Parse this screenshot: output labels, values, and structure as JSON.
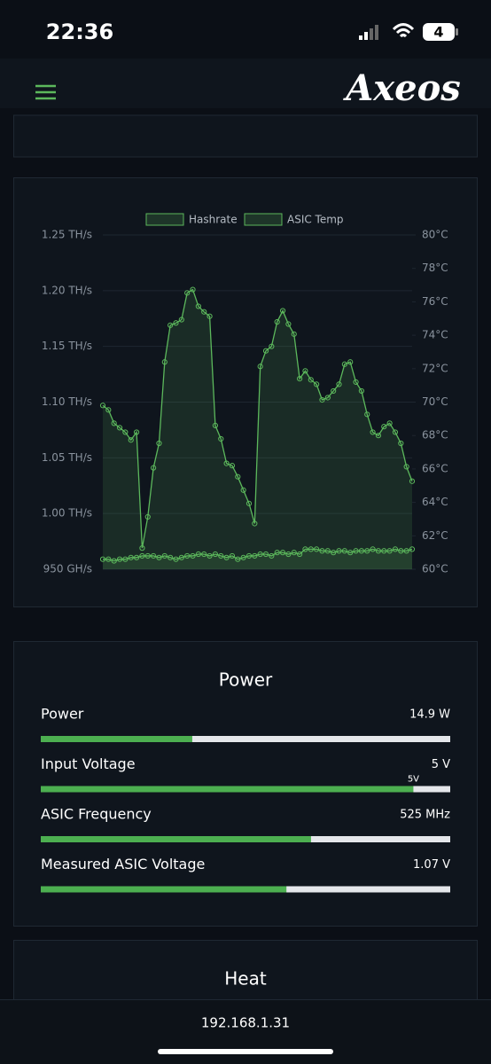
{
  "status_bar": {
    "time": "22:36",
    "battery": "4"
  },
  "header": {
    "logo": "Axeos"
  },
  "chart_data": {
    "type": "line",
    "legend": "top",
    "grid": true,
    "categories": [
      null,
      null,
      null,
      null,
      null,
      null,
      null,
      null,
      null,
      null,
      null,
      null,
      null,
      null,
      null,
      null,
      null,
      null,
      null,
      null,
      null,
      null,
      null,
      null,
      null,
      null,
      null,
      null,
      null,
      null,
      null,
      null,
      null,
      null,
      null,
      null,
      null,
      null,
      null,
      null,
      null,
      null,
      null,
      null,
      null,
      null,
      null,
      null,
      null,
      null,
      null,
      null,
      null,
      null,
      null,
      null
    ],
    "ylim": [
      0.95,
      1.25
    ],
    "yticks": [
      {
        "value": 0.95,
        "label": "950 GH/s"
      },
      {
        "value": 1.0,
        "label": "1.00 TH/s"
      },
      {
        "value": 1.05,
        "label": "1.05 TH/s"
      },
      {
        "value": 1.1,
        "label": "1.10 TH/s"
      },
      {
        "value": 1.15,
        "label": "1.15 TH/s"
      },
      {
        "value": 1.2,
        "label": "1.20 TH/s"
      },
      {
        "value": 1.25,
        "label": "1.25 TH/s"
      }
    ],
    "y2lim": [
      60,
      80
    ],
    "y2ticks": [
      {
        "value": 60,
        "label": "60°C"
      },
      {
        "value": 62,
        "label": "62°C"
      },
      {
        "value": 64,
        "label": "64°C"
      },
      {
        "value": 66,
        "label": "66°C"
      },
      {
        "value": 68,
        "label": "68°C"
      },
      {
        "value": 70,
        "label": "70°C"
      },
      {
        "value": 72,
        "label": "72°C"
      },
      {
        "value": 74,
        "label": "74°C"
      },
      {
        "value": 76,
        "label": "76°C"
      },
      {
        "value": 78,
        "label": "78°C"
      },
      {
        "value": 80,
        "label": "80°C"
      }
    ],
    "series": [
      {
        "name": "Hashrate",
        "color": "#5cb85c",
        "values": [
          1.097,
          1.093,
          1.081,
          1.077,
          1.073,
          1.066,
          1.073,
          0.969,
          0.997,
          1.041,
          1.063,
          1.136,
          1.169,
          1.171,
          1.174,
          1.198,
          1.201,
          1.186,
          1.181,
          1.177,
          1.079,
          1.067,
          1.045,
          1.043,
          1.033,
          1.021,
          1.009,
          0.991,
          1.132,
          1.146,
          1.15,
          1.172,
          1.182,
          1.17,
          1.161,
          1.121,
          1.128,
          1.12,
          1.116,
          1.102,
          1.104,
          1.11,
          1.116,
          1.134,
          1.136,
          1.118,
          1.11,
          1.089,
          1.073,
          1.07,
          1.078,
          1.081,
          1.073,
          1.063,
          1.042,
          1.029
        ]
      },
      {
        "name": "ASIC Temp",
        "color": "#5cb85c",
        "axis": "y2",
        "values": [
          60.6,
          60.6,
          60.5,
          60.6,
          60.6,
          60.7,
          60.7,
          60.8,
          60.8,
          60.8,
          60.7,
          60.8,
          60.7,
          60.6,
          60.7,
          60.8,
          60.8,
          60.9,
          60.9,
          60.8,
          60.9,
          60.8,
          60.7,
          60.8,
          60.6,
          60.7,
          60.8,
          60.8,
          60.9,
          60.9,
          60.8,
          61.0,
          61.0,
          60.9,
          61.0,
          60.9,
          61.2,
          61.2,
          61.2,
          61.1,
          61.1,
          61.0,
          61.1,
          61.1,
          61.0,
          61.1,
          61.1,
          61.1,
          61.2,
          61.1,
          61.1,
          61.1,
          61.2,
          61.1,
          61.1,
          61.2
        ]
      }
    ]
  },
  "power": {
    "title": "Power",
    "rows": [
      {
        "label": "Power",
        "value": "14.9 W",
        "progress": 37
      },
      {
        "label": "Input Voltage",
        "value": "5 V",
        "progress": 91,
        "marker_label": "5V"
      },
      {
        "label": "ASIC Frequency",
        "value": "525 MHz",
        "progress": 66
      },
      {
        "label": "Measured ASIC Voltage",
        "value": "1.07 V",
        "progress": 60
      }
    ]
  },
  "heat": {
    "title": "Heat"
  },
  "footer": {
    "address": "192.168.1.31"
  }
}
